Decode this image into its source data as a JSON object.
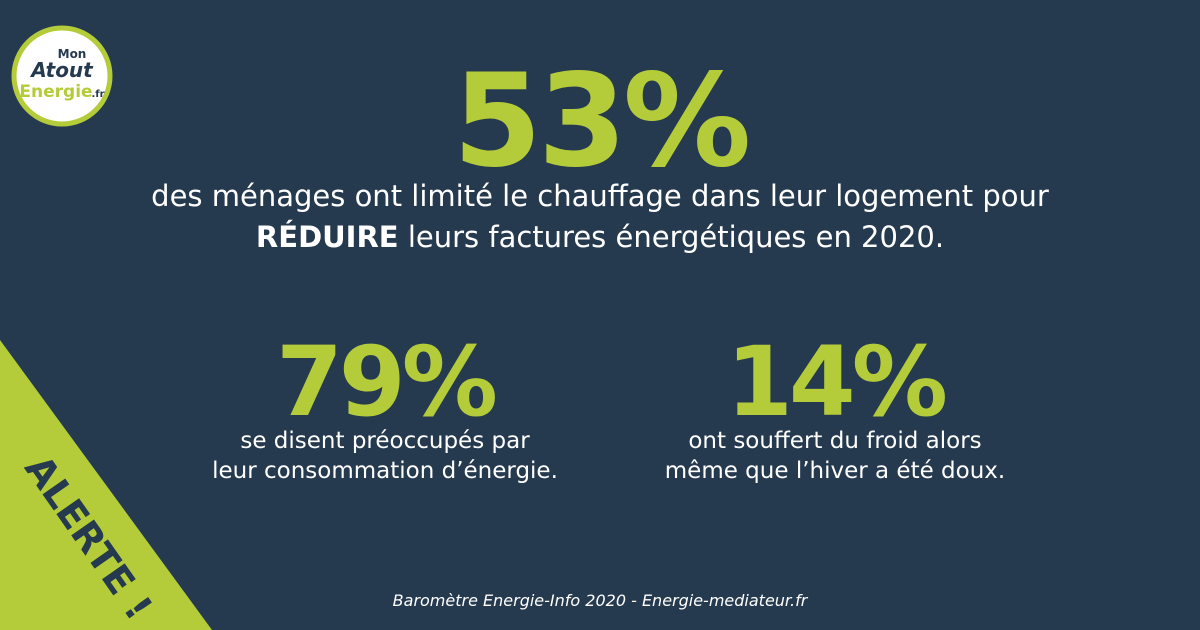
{
  "logo": {
    "top": "Mon",
    "middle": "Atout",
    "bottom": "Energie",
    "suffix": ".fr"
  },
  "headline": {
    "figure": "53%",
    "line1": "des ménages ont limité le chauffage dans leur logement pour",
    "emphasis": "RÉDUIRE",
    "line2": "leurs factures énergétiques en 2020."
  },
  "stats": [
    {
      "figure": "79%",
      "line1": "se disent préoccupés par",
      "line2": "leur consommation d’énergie."
    },
    {
      "figure": "14%",
      "line1": "ont souffert du froid alors",
      "line2": "même que l’hiver a été doux."
    }
  ],
  "banner": "ALERTE !",
  "source": "Baromètre Energie-Info 2020 - Energie-mediateur.fr"
}
